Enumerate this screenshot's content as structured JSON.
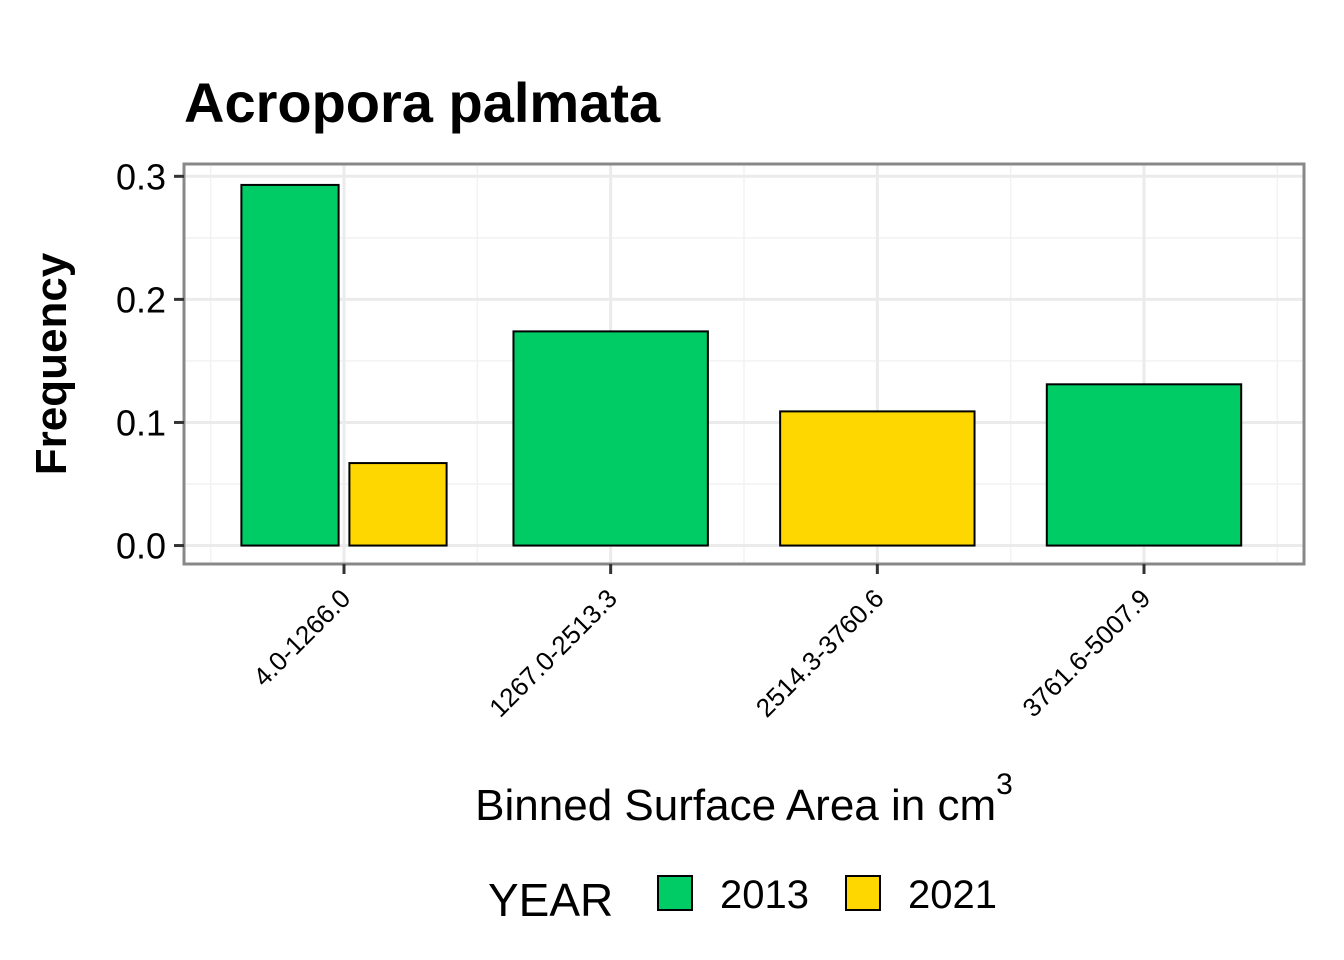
{
  "chart_data": {
    "type": "bar",
    "title": "Acropora palmata",
    "xlabel": "Binned Surface Area in cm",
    "xlabel_superscript": "3",
    "ylabel": "Frequency",
    "categories": [
      "4.0-1266.0",
      "1267.0-2513.3",
      "2514.3-3760.6",
      "3761.6-5007.9"
    ],
    "series": [
      {
        "name": "2013",
        "color": "#00CC66",
        "values": [
          0.293,
          0.174,
          null,
          0.131
        ]
      },
      {
        "name": "2021",
        "color": "#FFD700",
        "values": [
          0.067,
          null,
          0.109,
          null
        ]
      }
    ],
    "ylim": [
      -0.015,
      0.31
    ],
    "yticks": [
      0.0,
      0.1,
      0.2,
      0.3
    ],
    "ytick_labels": [
      "0.0",
      "0.1",
      "0.2",
      "0.3"
    ],
    "grid": true,
    "legend": {
      "title": "YEAR",
      "placement": "bottom"
    }
  }
}
